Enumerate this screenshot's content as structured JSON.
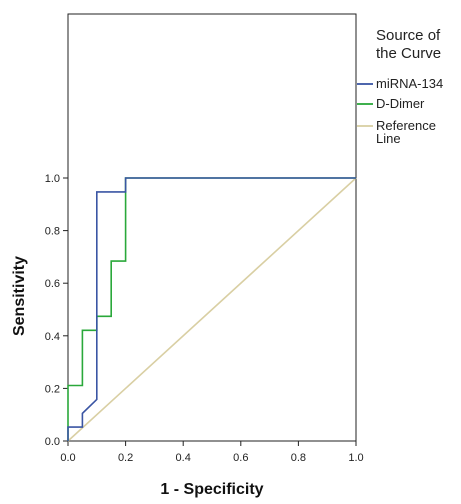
{
  "chart_data": {
    "type": "line",
    "xlabel": "1 - Specificity",
    "ylabel": "Sensitivity",
    "xlim": [
      0,
      1
    ],
    "ylim": [
      0,
      1
    ],
    "x_ticks": [
      "0.0",
      "0.2",
      "0.4",
      "0.6",
      "0.8",
      "1.0"
    ],
    "y_ticks": [
      "0.0",
      "0.2",
      "0.4",
      "0.6",
      "0.8",
      "1.0"
    ],
    "grid": false,
    "legend": {
      "title_lines": [
        "Source of",
        "the Curve"
      ],
      "placement": "right"
    },
    "series": [
      {
        "name": "miRNA-134",
        "color": "#3a55a4",
        "x": [
          0,
          0,
          0.05,
          0.05,
          0.1,
          0.1,
          0.2,
          0.2,
          1
        ],
        "y": [
          0,
          0.053,
          0.053,
          0.105,
          0.158,
          0.947,
          0.947,
          1,
          1
        ]
      },
      {
        "name": "D-Dimer",
        "color": "#2aa83a",
        "x": [
          0,
          0,
          0.05,
          0.05,
          0.1,
          0.1,
          0.15,
          0.15,
          0.2,
          0.2,
          1
        ],
        "y": [
          0,
          0.211,
          0.211,
          0.421,
          0.421,
          0.474,
          0.474,
          0.684,
          0.684,
          1,
          1
        ]
      },
      {
        "name": "Reference Line",
        "label_lines": [
          "Reference",
          "Line"
        ],
        "color": "#d9cfa3",
        "x": [
          0,
          1
        ],
        "y": [
          0,
          1
        ]
      }
    ]
  }
}
